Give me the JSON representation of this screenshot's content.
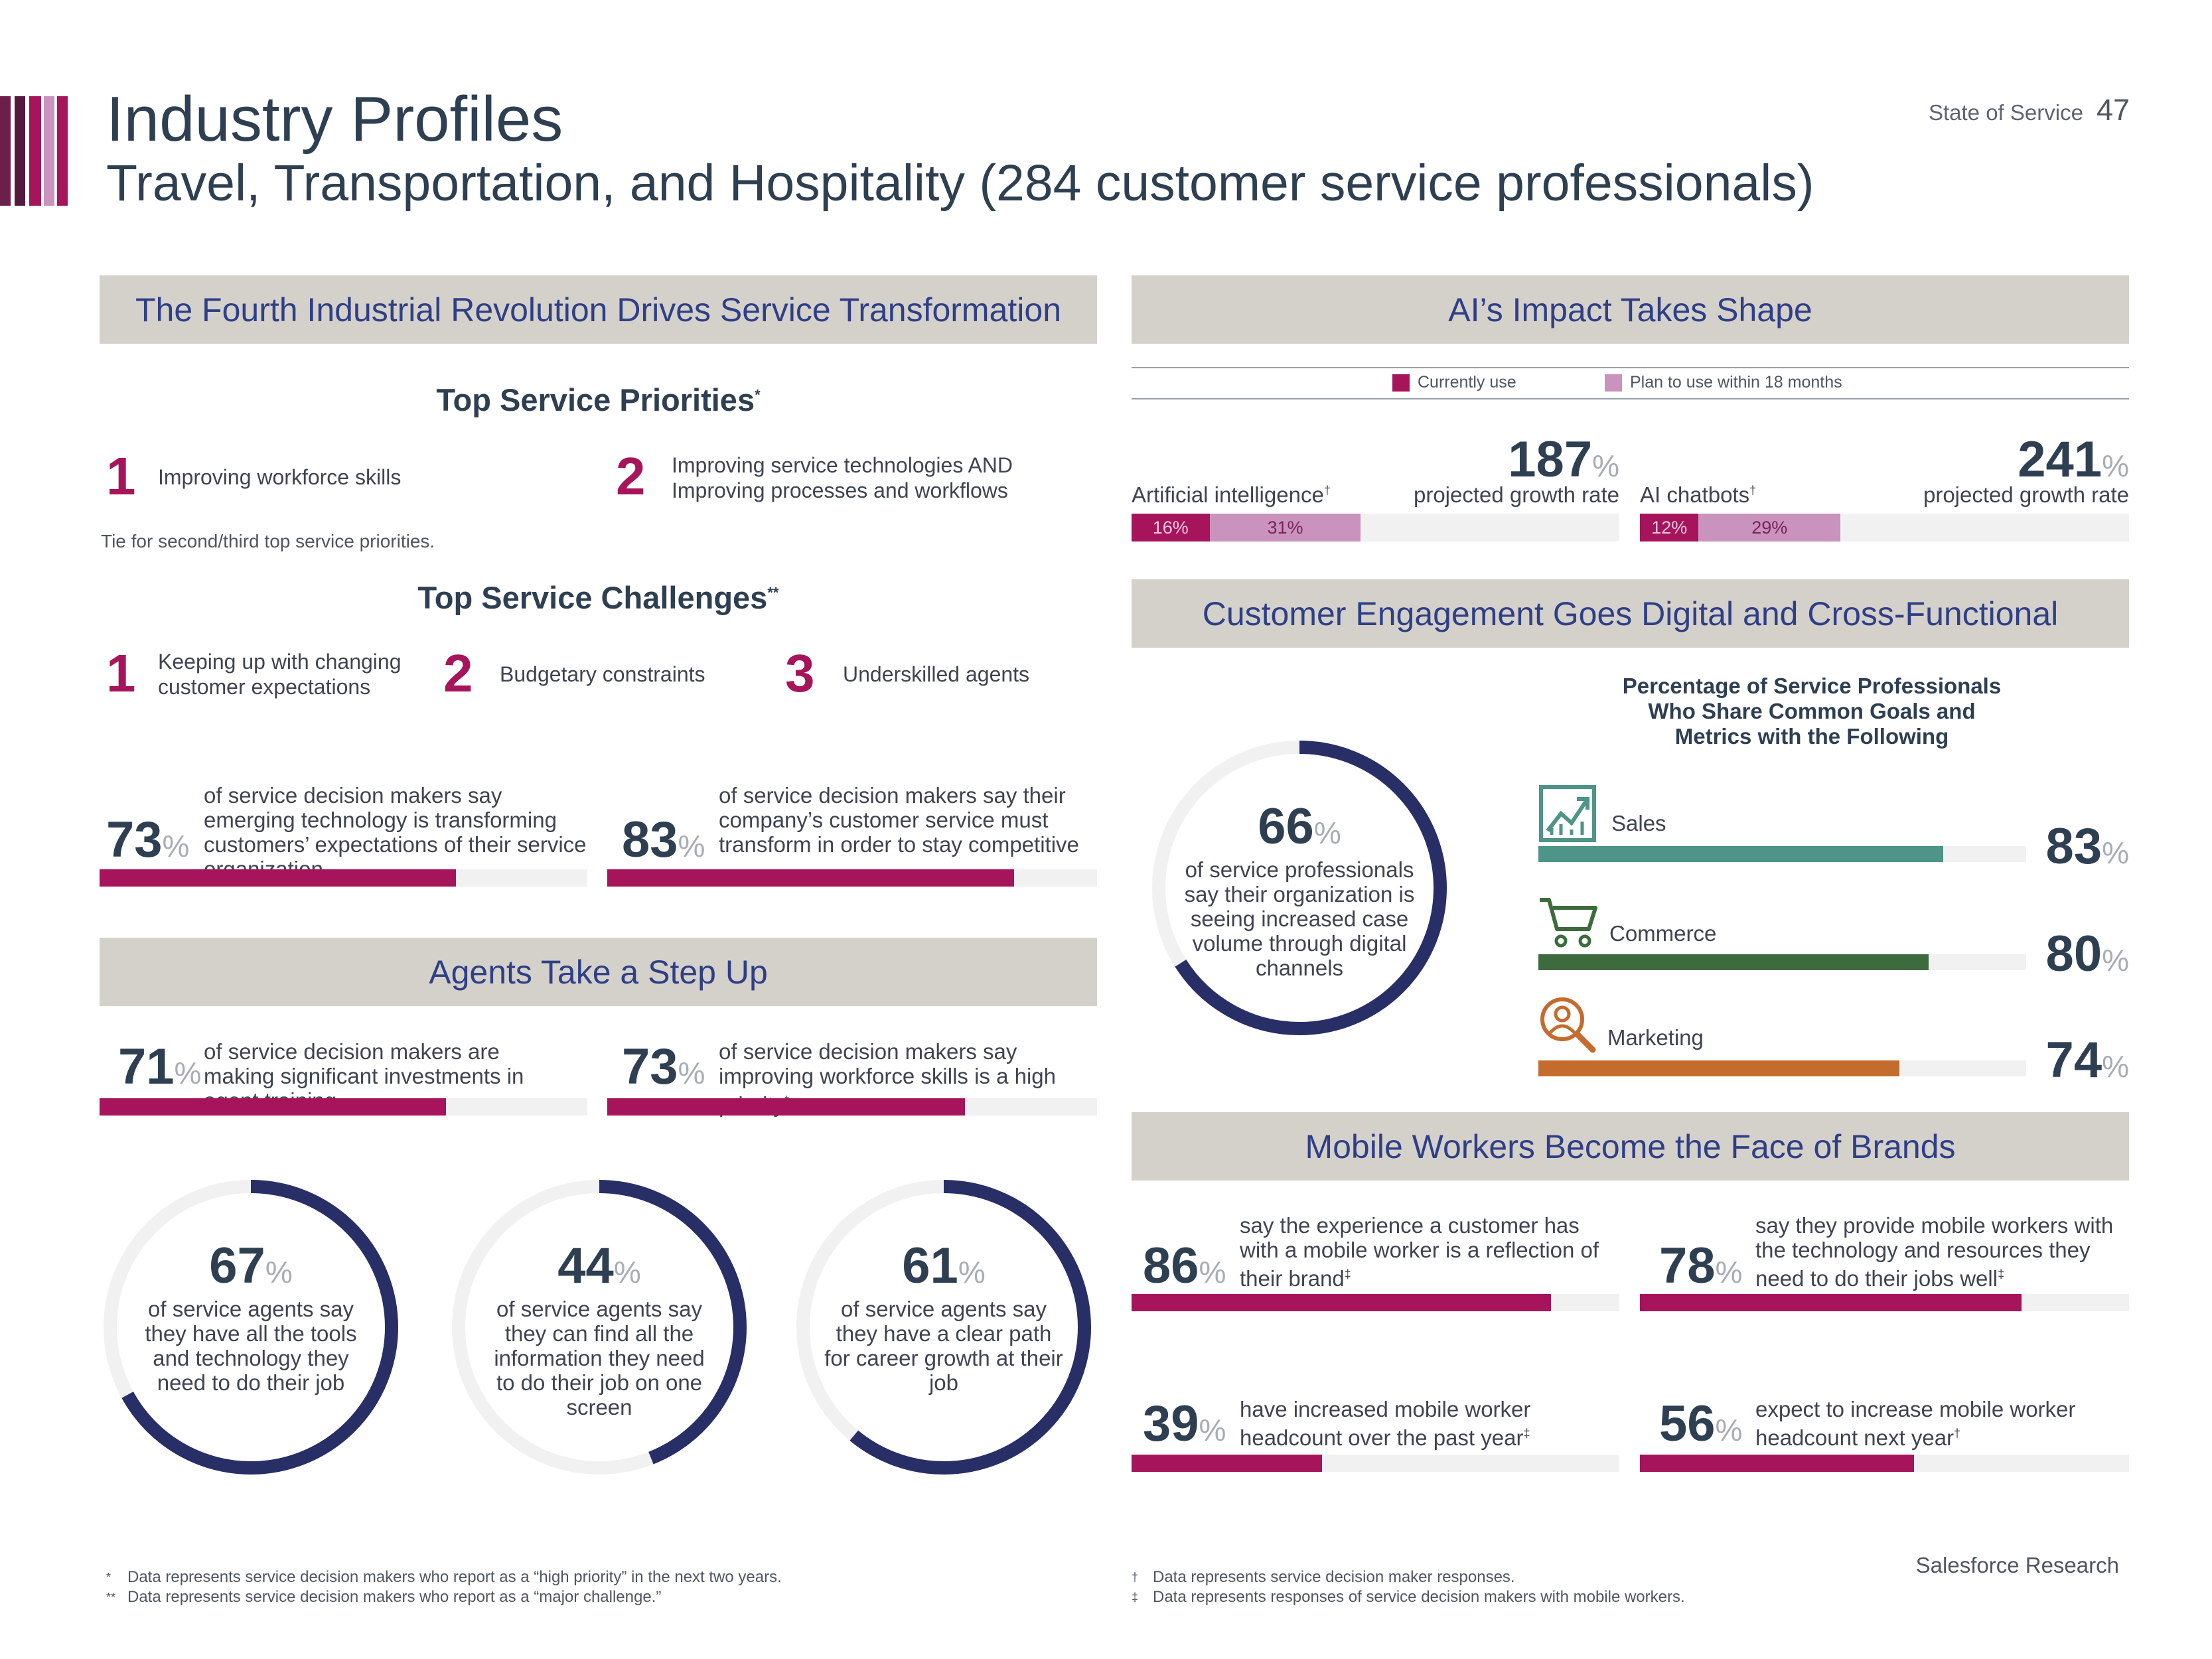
{
  "header": {
    "title": "Industry Profiles",
    "subtitle": "Travel, Transportation, and Hospitality (284 customer service professionals)",
    "report_name": "State of Service",
    "page_number": "47"
  },
  "colors": {
    "magenta": "#a6145b",
    "navy": "#2e3f52",
    "donut": "#282e66",
    "plan": "#c993bd",
    "sales": "#4e9488",
    "commerce": "#3d6b3e",
    "marketing": "#c46c2d"
  },
  "fourth_ir": {
    "banner": "The Fourth Industrial Revolution Drives Service Transformation",
    "priorities_heading": "Top Service Priorities",
    "priorities_mark": "*",
    "priorities": [
      {
        "rank": "1",
        "text": "Improving workforce skills"
      },
      {
        "rank": "2",
        "text": "Improving service technologies AND Improving processes and workflows"
      }
    ],
    "tie_note": "Tie for second/third top service priorities.",
    "challenges_heading": "Top Service Challenges",
    "challenges_mark": "**",
    "challenges": [
      {
        "rank": "1",
        "text": "Keeping up with changing customer expectations"
      },
      {
        "rank": "2",
        "text": "Budgetary constraints"
      },
      {
        "rank": "3",
        "text": "Underskilled agents"
      }
    ],
    "stats": [
      {
        "value": "73",
        "unit": "%",
        "fraction": 0.73,
        "text": "of service decision makers say emerging technology is transforming customers’ expectations of their service organization"
      },
      {
        "value": "83",
        "unit": "%",
        "fraction": 0.83,
        "text": "of service decision makers say their company’s customer service must transform in order to stay competitive"
      }
    ]
  },
  "agents": {
    "banner": "Agents Take a Step Up",
    "stats": [
      {
        "value": "71",
        "unit": "%",
        "fraction": 0.71,
        "text": "of service decision makers are making significant investments in agent training"
      },
      {
        "value": "73",
        "unit": "%",
        "fraction": 0.73,
        "text": "of service decision makers say improving workforce skills is a high priority",
        "mark": "*"
      }
    ],
    "donuts": [
      {
        "value": "67",
        "unit": "%",
        "fraction": 0.67,
        "text": "of service agents say they have all the tools and technology they need to do their job"
      },
      {
        "value": "44",
        "unit": "%",
        "fraction": 0.44,
        "text": "of service agents say they can find all the information they need to do their job on one screen"
      },
      {
        "value": "61",
        "unit": "%",
        "fraction": 0.61,
        "text": "of service agents say they have a clear path for career growth at their job"
      }
    ]
  },
  "ai": {
    "banner": "AI’s Impact Takes Shape",
    "legend": {
      "current": "Currently use",
      "plan": "Plan to use within 18 months"
    },
    "items": [
      {
        "label": "Artificial intelligence",
        "mark": "†",
        "growth_value": "187",
        "growth_unit": "%",
        "growth_label": "projected growth rate",
        "current": "16%",
        "current_fraction": 0.16,
        "plan": "31%",
        "plan_fraction": 0.31
      },
      {
        "label": "AI chatbots",
        "mark": "†",
        "growth_value": "241",
        "growth_unit": "%",
        "growth_label": "projected growth rate",
        "current": "12%",
        "current_fraction": 0.12,
        "plan": "29%",
        "plan_fraction": 0.29
      }
    ]
  },
  "engagement": {
    "banner": "Customer Engagement Goes Digital and Cross-Functional",
    "donut": {
      "value": "66",
      "unit": "%",
      "fraction": 0.66,
      "text": "of service professionals say their organization is seeing increased case volume through digital channels"
    },
    "bars_title": "Percentage of Service Professionals Who Share Common Goals and Metrics with the Following",
    "bars": [
      {
        "label": "Sales",
        "icon": "chart-growth-icon",
        "value": "83",
        "unit": "%",
        "fraction": 0.83
      },
      {
        "label": "Commerce",
        "icon": "shopping-cart-icon",
        "value": "80",
        "unit": "%",
        "fraction": 0.8
      },
      {
        "label": "Marketing",
        "icon": "magnifier-person-icon",
        "value": "74",
        "unit": "%",
        "fraction": 0.74
      }
    ]
  },
  "mobile": {
    "banner": "Mobile Workers Become the Face of Brands",
    "stats": [
      {
        "value": "86",
        "unit": "%",
        "fraction": 0.86,
        "text": "say the experience a customer has with a mobile worker is a reflection of their brand",
        "mark": "‡"
      },
      {
        "value": "78",
        "unit": "%",
        "fraction": 0.78,
        "text": "say they provide mobile workers with the technology and resources they need to do their jobs well",
        "mark": "‡"
      },
      {
        "value": "39",
        "unit": "%",
        "fraction": 0.39,
        "text": "have increased mobile worker headcount over the past year",
        "mark": "‡"
      },
      {
        "value": "56",
        "unit": "%",
        "fraction": 0.56,
        "text": "expect to increase mobile worker headcount next year",
        "mark": "†"
      }
    ]
  },
  "footnotes": {
    "left": [
      {
        "sym": "*",
        "text": "Data represents service decision makers who report as a “high priority” in the next two years."
      },
      {
        "sym": "**",
        "text": "Data represents service decision makers who report as a “major challenge.”"
      }
    ],
    "right": [
      {
        "sym": "†",
        "text": "Data represents service decision maker responses."
      },
      {
        "sym": "‡",
        "text": "Data represents responses of service decision makers with mobile workers."
      }
    ],
    "brand": "Salesforce Research"
  }
}
